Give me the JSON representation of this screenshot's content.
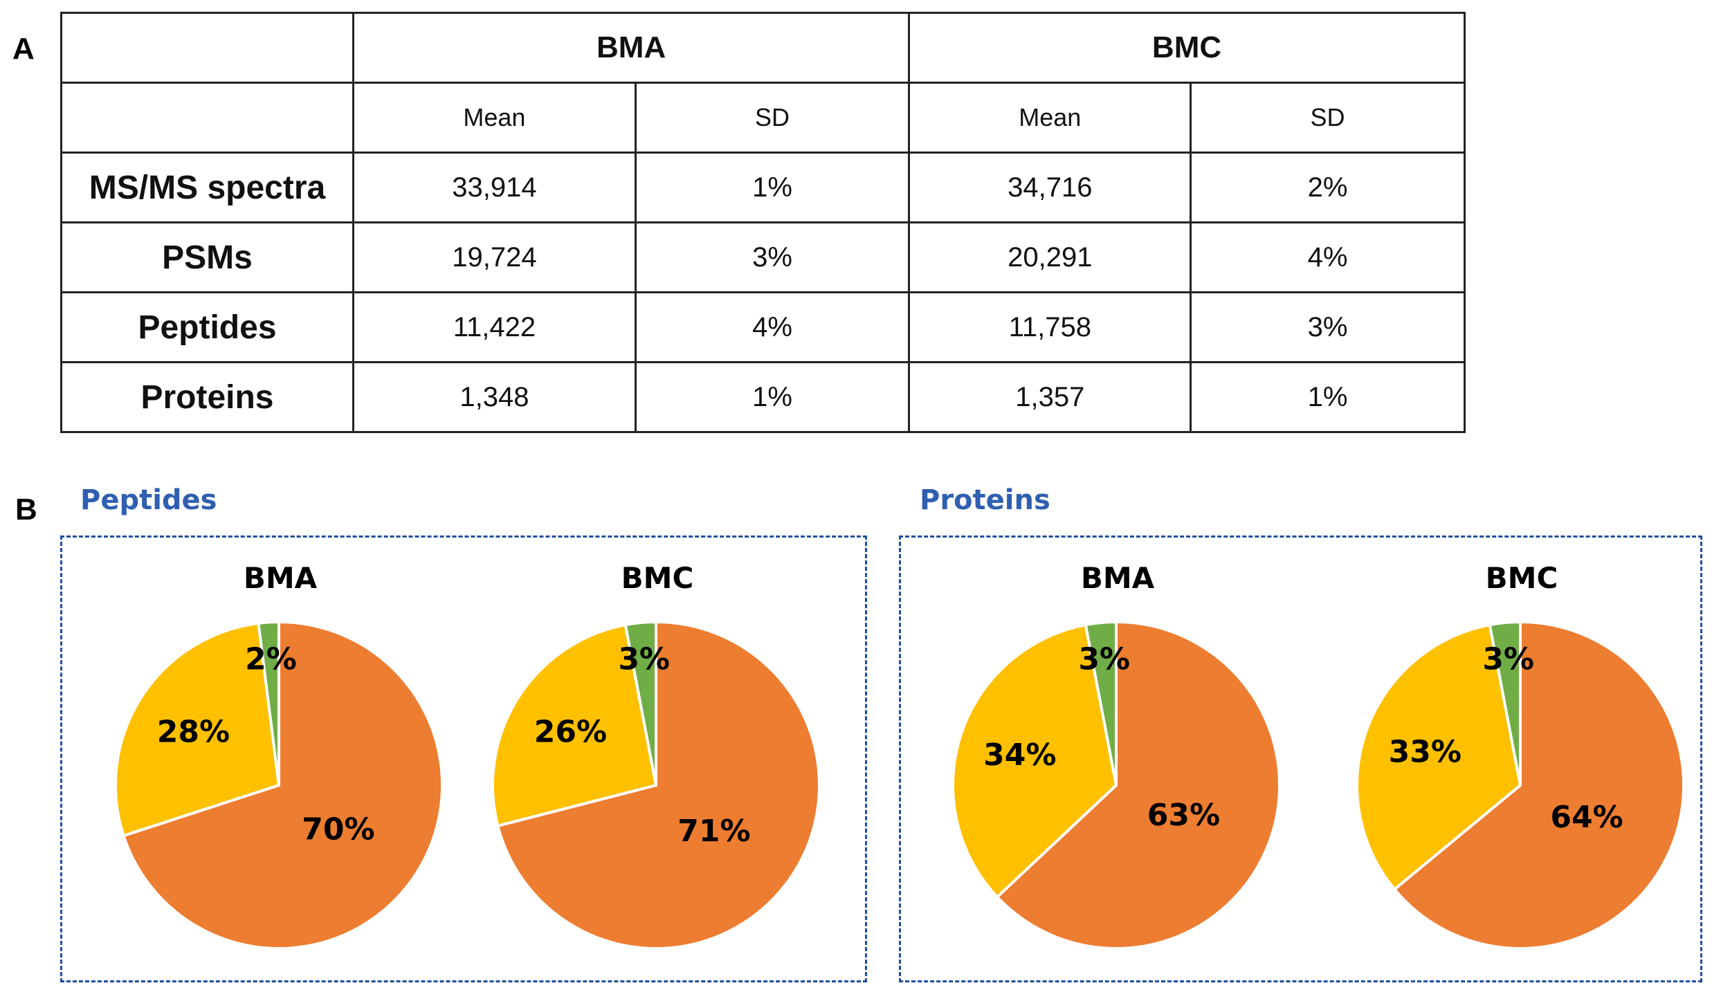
{
  "panel_a": {
    "letter": "A",
    "groups": [
      "BMA",
      "BMC"
    ],
    "subheaders": [
      "Mean",
      "SD",
      "Mean",
      "SD"
    ],
    "rows": [
      {
        "label": "MS/MS spectra",
        "values": [
          "33,914",
          "1%",
          "34,716",
          "2%"
        ]
      },
      {
        "label": "PSMs",
        "values": [
          "19,724",
          "3%",
          "20,291",
          "4%"
        ]
      },
      {
        "label": "Peptides",
        "values": [
          "11,422",
          "4%",
          "11,758",
          "3%"
        ]
      },
      {
        "label": "Proteins",
        "values": [
          "1,348",
          "1%",
          "1,357",
          "1%"
        ]
      }
    ]
  },
  "panel_b": {
    "letter": "B",
    "boxes": [
      "Peptides",
      "Proteins"
    ]
  },
  "colors": {
    "orange": "#ed7d31",
    "yellow": "#ffc000",
    "green": "#70ad47",
    "box": "#1f4e9c"
  },
  "chart_data": [
    {
      "type": "pie",
      "group": "Peptides",
      "title": "BMA",
      "values": [
        70,
        28,
        2
      ],
      "labels": [
        "70%",
        "28%",
        "2%"
      ],
      "colors": [
        "#ed7d31",
        "#ffc000",
        "#70ad47"
      ]
    },
    {
      "type": "pie",
      "group": "Peptides",
      "title": "BMC",
      "values": [
        71,
        26,
        3
      ],
      "labels": [
        "71%",
        "26%",
        "3%"
      ],
      "colors": [
        "#ed7d31",
        "#ffc000",
        "#70ad47"
      ]
    },
    {
      "type": "pie",
      "group": "Proteins",
      "title": "BMA",
      "values": [
        63,
        34,
        3
      ],
      "labels": [
        "63%",
        "34%",
        "3%"
      ],
      "colors": [
        "#ed7d31",
        "#ffc000",
        "#70ad47"
      ]
    },
    {
      "type": "pie",
      "group": "Proteins",
      "title": "BMC",
      "values": [
        64,
        33,
        3
      ],
      "labels": [
        "64%",
        "33%",
        "3%"
      ],
      "colors": [
        "#ed7d31",
        "#ffc000",
        "#70ad47"
      ]
    }
  ]
}
